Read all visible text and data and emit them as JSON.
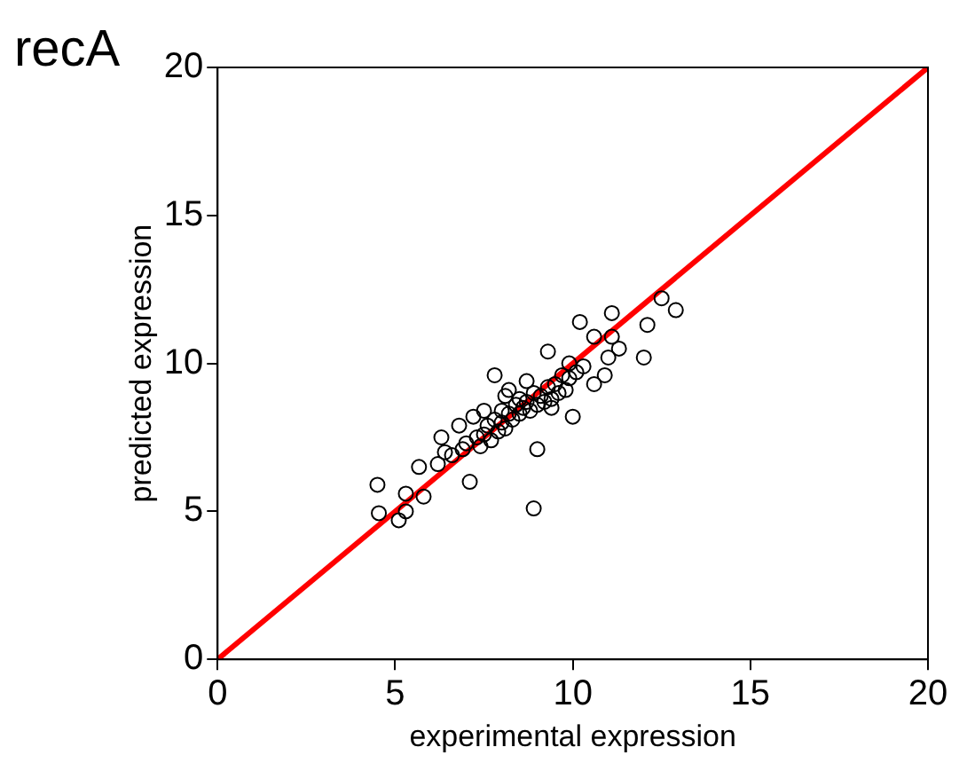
{
  "chart_data": {
    "type": "scatter",
    "title": "recA",
    "xlabel": "experimental expression",
    "ylabel": "predicted expression",
    "xlim": [
      0,
      20
    ],
    "ylim": [
      0,
      20
    ],
    "xticks": [
      0,
      5,
      10,
      15,
      20
    ],
    "yticks": [
      0,
      5,
      10,
      15,
      20
    ],
    "grid": false,
    "legend": false,
    "series": [
      {
        "color": "#000000",
        "marker": "circle",
        "x": [
          4.5,
          4.54,
          5.1,
          5.3,
          5.3,
          5.67,
          5.8,
          6.2,
          6.3,
          6.8,
          7.1,
          7.2,
          7.8,
          8.2,
          8.9,
          9.0,
          10.0,
          9.3,
          10.2,
          10.6,
          10.9,
          11.1,
          11.3,
          12.0,
          12.1,
          12.5,
          12.9,
          11.1,
          10.6,
          11.0,
          6.6,
          6.9,
          7.0,
          7.3,
          7.4,
          7.5,
          7.6,
          7.7,
          7.8,
          7.9,
          8.0,
          8.0,
          8.1,
          8.2,
          8.3,
          8.4,
          8.5,
          8.5,
          8.6,
          8.7,
          8.8,
          8.9,
          9.0,
          9.1,
          9.2,
          9.3,
          9.4,
          9.5,
          9.6,
          9.7,
          9.8,
          9.9,
          10.1,
          10.3,
          7.5,
          8.1,
          8.7,
          9.4,
          6.4,
          9.9
        ],
        "values": [
          5.9,
          4.94,
          4.7,
          5.6,
          5.0,
          6.5,
          5.5,
          6.6,
          7.5,
          7.9,
          6.0,
          8.2,
          9.6,
          9.1,
          5.1,
          7.1,
          8.2,
          10.4,
          11.4,
          9.3,
          9.6,
          11.7,
          10.5,
          10.2,
          11.3,
          12.2,
          11.8,
          10.9,
          10.9,
          10.2,
          6.9,
          7.1,
          7.3,
          7.5,
          7.2,
          7.6,
          7.9,
          7.4,
          8.1,
          7.7,
          8.0,
          8.4,
          7.8,
          8.3,
          8.1,
          8.6,
          8.3,
          8.8,
          8.5,
          8.7,
          8.4,
          9.0,
          8.6,
          8.9,
          8.7,
          9.2,
          8.8,
          9.3,
          9.0,
          9.6,
          9.1,
          9.5,
          9.7,
          9.9,
          8.4,
          8.9,
          9.4,
          8.5,
          7.0,
          10.0
        ]
      },
      {
        "type": "line",
        "color": "#ff0000",
        "marker": "none",
        "line_style": "solid",
        "x": [
          0,
          20
        ],
        "values": [
          0,
          20
        ]
      }
    ]
  }
}
